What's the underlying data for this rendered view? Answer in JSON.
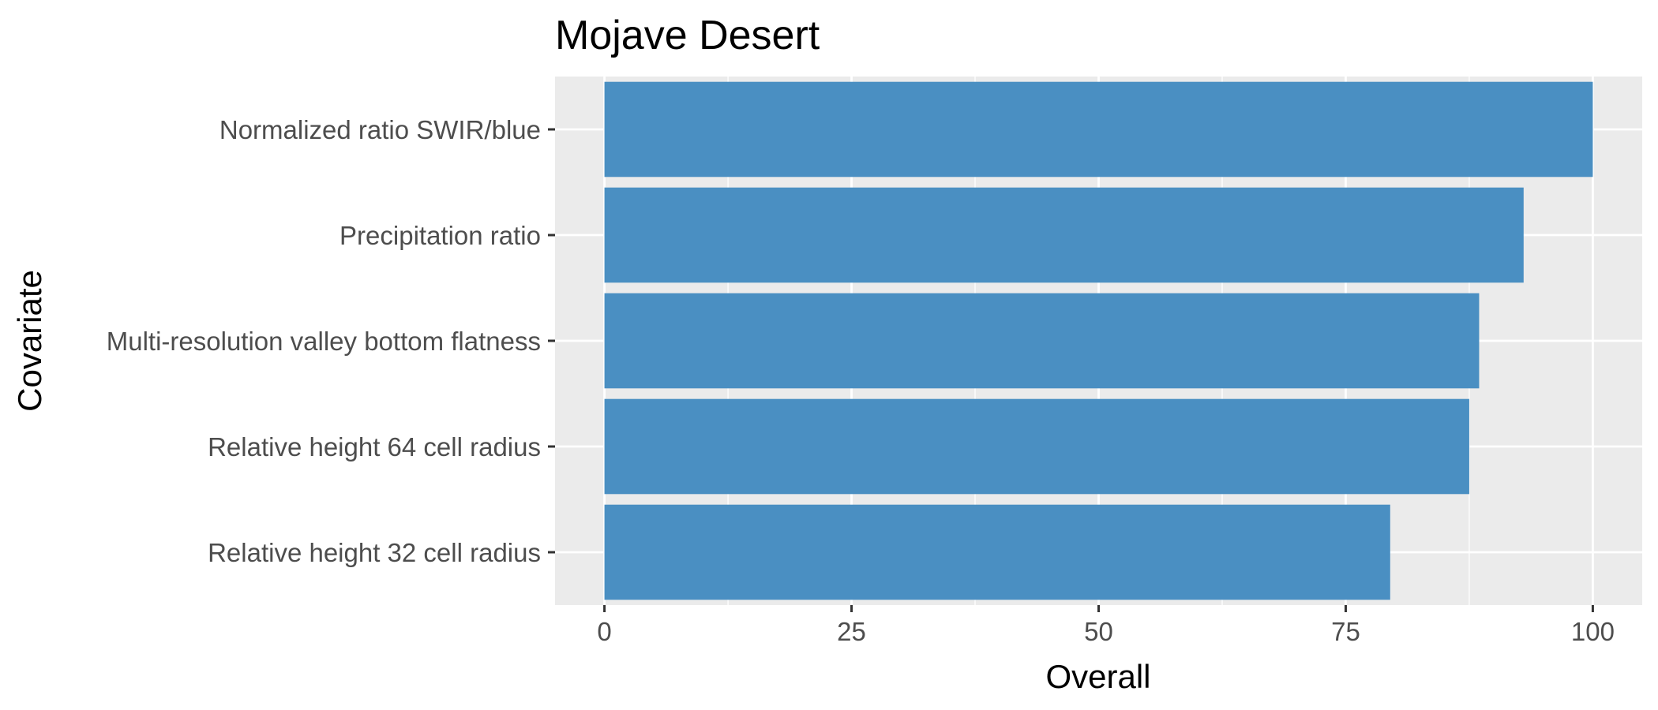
{
  "chart_data": {
    "type": "bar",
    "orientation": "horizontal",
    "title": "Mojave Desert",
    "xlabel": "Overall",
    "ylabel": "Covariate",
    "categories": [
      "Normalized ratio SWIR/blue",
      "Precipitation ratio",
      "Multi-resolution valley bottom flatness",
      "Relative height 64 cell radius",
      "Relative height 32 cell radius"
    ],
    "values": [
      100,
      93,
      88.5,
      87.5,
      79.5
    ],
    "xlim": [
      -5,
      105
    ],
    "xticks": [
      0,
      25,
      50,
      75,
      100
    ],
    "xtick_labels": [
      "0",
      "25",
      "50",
      "75",
      "100"
    ],
    "grid": true,
    "legend": "none",
    "colors": {
      "bar": "#4a8fc2",
      "panel": "#ebebeb",
      "grid": "#ffffff"
    }
  }
}
